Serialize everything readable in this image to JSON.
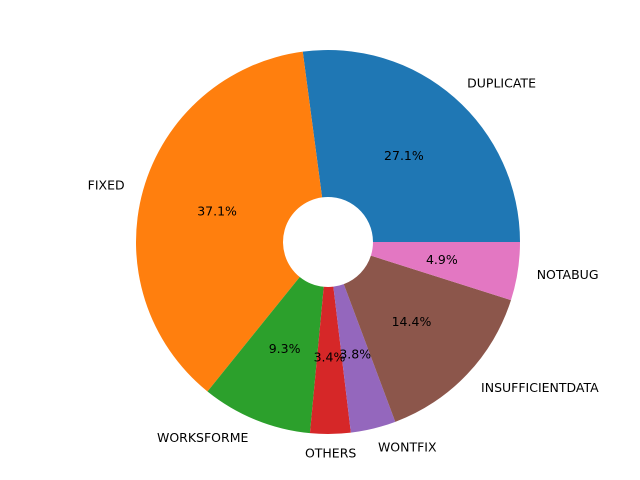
{
  "chart_data": {
    "type": "pie",
    "donut": true,
    "start_angle_deg": 0,
    "direction": "counterclockwise",
    "slices": [
      {
        "label": "DUPLICATE",
        "value": 27.1,
        "pct_label": "27.1%",
        "color": "#1f77b4"
      },
      {
        "label": "FIXED",
        "value": 37.1,
        "pct_label": "37.1%",
        "color": "#ff7f0e"
      },
      {
        "label": "WORKSFORME",
        "value": 9.3,
        "pct_label": "9.3%",
        "color": "#2ca02c"
      },
      {
        "label": "OTHERS",
        "value": 3.4,
        "pct_label": "3.4%",
        "color": "#d62728"
      },
      {
        "label": "WONTFIX",
        "value": 3.8,
        "pct_label": "3.8%",
        "color": "#9467bd"
      },
      {
        "label": "INSUFFICIENTDATA",
        "value": 14.4,
        "pct_label": "14.4%",
        "color": "#8c564b"
      },
      {
        "label": "NOTABUG",
        "value": 4.9,
        "pct_label": "4.9%",
        "color": "#e377c2"
      }
    ]
  }
}
